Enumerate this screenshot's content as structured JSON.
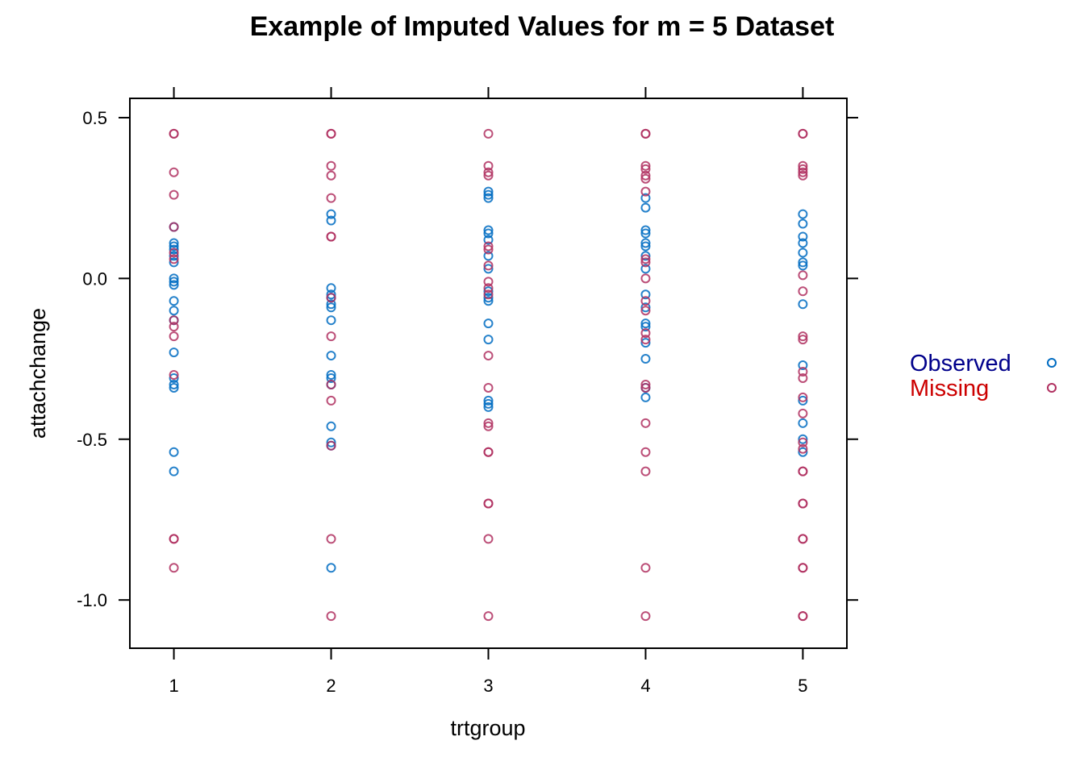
{
  "chart_data": {
    "type": "scatter",
    "title": "Example of Imputed Values for m = 5 Dataset",
    "xlabel": "trtgroup",
    "ylabel": "attachchange",
    "x_ticks": [
      "1",
      "2",
      "3",
      "4",
      "5"
    ],
    "y_ticks": [
      "0.5",
      "0.0",
      "-0.5",
      "-1.0"
    ],
    "y_tick_values": [
      0.5,
      0.0,
      -0.5,
      -1.0
    ],
    "xlim": [
      0.72,
      5.28
    ],
    "ylim": [
      -1.15,
      0.56
    ],
    "grid": false,
    "legend_position": "right",
    "legend": [
      {
        "label": "Observed",
        "text_color": "#00008b",
        "marker_color": "#006cc2"
      },
      {
        "label": "Missing",
        "text_color": "#cc0000",
        "marker_color": "#b03060"
      }
    ],
    "series": [
      {
        "name": "Observed",
        "color": "#006cc2",
        "points": [
          [
            1,
            0.16
          ],
          [
            1,
            0.11
          ],
          [
            1,
            0.1
          ],
          [
            1,
            0.09
          ],
          [
            1,
            0.07
          ],
          [
            1,
            0.05
          ],
          [
            1,
            0.0
          ],
          [
            1,
            -0.01
          ],
          [
            1,
            -0.02
          ],
          [
            1,
            -0.07
          ],
          [
            1,
            -0.1
          ],
          [
            1,
            -0.13
          ],
          [
            1,
            -0.23
          ],
          [
            1,
            -0.31
          ],
          [
            1,
            -0.33
          ],
          [
            1,
            -0.34
          ],
          [
            1,
            -0.54
          ],
          [
            1,
            -0.6
          ],
          [
            2,
            0.2
          ],
          [
            2,
            0.18
          ],
          [
            2,
            -0.03
          ],
          [
            2,
            -0.05
          ],
          [
            2,
            -0.06
          ],
          [
            2,
            -0.08
          ],
          [
            2,
            -0.09
          ],
          [
            2,
            -0.13
          ],
          [
            2,
            -0.24
          ],
          [
            2,
            -0.3
          ],
          [
            2,
            -0.31
          ],
          [
            2,
            -0.33
          ],
          [
            2,
            -0.46
          ],
          [
            2,
            -0.51
          ],
          [
            2,
            -0.52
          ],
          [
            2,
            -0.9
          ],
          [
            3,
            0.27
          ],
          [
            3,
            0.26
          ],
          [
            3,
            0.25
          ],
          [
            3,
            0.15
          ],
          [
            3,
            0.14
          ],
          [
            3,
            0.12
          ],
          [
            3,
            0.07
          ],
          [
            3,
            0.03
          ],
          [
            3,
            -0.04
          ],
          [
            3,
            -0.06
          ],
          [
            3,
            -0.07
          ],
          [
            3,
            -0.14
          ],
          [
            3,
            -0.19
          ],
          [
            3,
            -0.38
          ],
          [
            3,
            -0.39
          ],
          [
            3,
            -0.4
          ],
          [
            4,
            0.25
          ],
          [
            4,
            0.22
          ],
          [
            4,
            0.15
          ],
          [
            4,
            0.14
          ],
          [
            4,
            0.11
          ],
          [
            4,
            0.1
          ],
          [
            4,
            0.07
          ],
          [
            4,
            0.03
          ],
          [
            4,
            -0.05
          ],
          [
            4,
            -0.09
          ],
          [
            4,
            -0.14
          ],
          [
            4,
            -0.15
          ],
          [
            4,
            -0.2
          ],
          [
            4,
            -0.25
          ],
          [
            4,
            -0.34
          ],
          [
            4,
            -0.37
          ],
          [
            5,
            0.2
          ],
          [
            5,
            0.17
          ],
          [
            5,
            0.13
          ],
          [
            5,
            0.11
          ],
          [
            5,
            0.08
          ],
          [
            5,
            0.05
          ],
          [
            5,
            0.04
          ],
          [
            5,
            -0.08
          ],
          [
            5,
            -0.27
          ],
          [
            5,
            -0.38
          ],
          [
            5,
            -0.45
          ],
          [
            5,
            -0.5
          ],
          [
            5,
            -0.54
          ]
        ]
      },
      {
        "name": "Missing",
        "color": "#b03060",
        "points": [
          [
            1,
            0.45
          ],
          [
            1,
            0.45
          ],
          [
            1,
            0.33
          ],
          [
            1,
            0.26
          ],
          [
            1,
            0.16
          ],
          [
            1,
            0.08
          ],
          [
            1,
            0.06
          ],
          [
            1,
            -0.13
          ],
          [
            1,
            -0.15
          ],
          [
            1,
            -0.18
          ],
          [
            1,
            -0.3
          ],
          [
            1,
            -0.81
          ],
          [
            1,
            -0.81
          ],
          [
            1,
            -0.9
          ],
          [
            2,
            0.45
          ],
          [
            2,
            0.45
          ],
          [
            2,
            0.35
          ],
          [
            2,
            0.32
          ],
          [
            2,
            0.25
          ],
          [
            2,
            0.13
          ],
          [
            2,
            0.13
          ],
          [
            2,
            -0.06
          ],
          [
            2,
            -0.18
          ],
          [
            2,
            -0.33
          ],
          [
            2,
            -0.38
          ],
          [
            2,
            -0.52
          ],
          [
            2,
            -0.81
          ],
          [
            2,
            -1.05
          ],
          [
            3,
            0.45
          ],
          [
            3,
            0.35
          ],
          [
            3,
            0.33
          ],
          [
            3,
            0.32
          ],
          [
            3,
            0.1
          ],
          [
            3,
            0.09
          ],
          [
            3,
            0.04
          ],
          [
            3,
            -0.01
          ],
          [
            3,
            -0.03
          ],
          [
            3,
            -0.05
          ],
          [
            3,
            -0.24
          ],
          [
            3,
            -0.34
          ],
          [
            3,
            -0.45
          ],
          [
            3,
            -0.46
          ],
          [
            3,
            -0.54
          ],
          [
            3,
            -0.54
          ],
          [
            3,
            -0.7
          ],
          [
            3,
            -0.7
          ],
          [
            3,
            -0.81
          ],
          [
            3,
            -1.05
          ],
          [
            4,
            0.45
          ],
          [
            4,
            0.45
          ],
          [
            4,
            0.35
          ],
          [
            4,
            0.34
          ],
          [
            4,
            0.32
          ],
          [
            4,
            0.31
          ],
          [
            4,
            0.27
          ],
          [
            4,
            0.06
          ],
          [
            4,
            0.05
          ],
          [
            4,
            0.0
          ],
          [
            4,
            -0.07
          ],
          [
            4,
            -0.1
          ],
          [
            4,
            -0.17
          ],
          [
            4,
            -0.19
          ],
          [
            4,
            -0.33
          ],
          [
            4,
            -0.34
          ],
          [
            4,
            -0.45
          ],
          [
            4,
            -0.54
          ],
          [
            4,
            -0.6
          ],
          [
            4,
            -0.9
          ],
          [
            4,
            -1.05
          ],
          [
            5,
            0.45
          ],
          [
            5,
            0.45
          ],
          [
            5,
            0.35
          ],
          [
            5,
            0.34
          ],
          [
            5,
            0.33
          ],
          [
            5,
            0.32
          ],
          [
            5,
            0.01
          ],
          [
            5,
            -0.04
          ],
          [
            5,
            -0.18
          ],
          [
            5,
            -0.19
          ],
          [
            5,
            -0.29
          ],
          [
            5,
            -0.31
          ],
          [
            5,
            -0.37
          ],
          [
            5,
            -0.42
          ],
          [
            5,
            -0.51
          ],
          [
            5,
            -0.53
          ],
          [
            5,
            -0.6
          ],
          [
            5,
            -0.6
          ],
          [
            5,
            -0.7
          ],
          [
            5,
            -0.7
          ],
          [
            5,
            -0.81
          ],
          [
            5,
            -0.81
          ],
          [
            5,
            -0.9
          ],
          [
            5,
            -0.9
          ],
          [
            5,
            -1.05
          ],
          [
            5,
            -1.05
          ]
        ]
      }
    ]
  }
}
